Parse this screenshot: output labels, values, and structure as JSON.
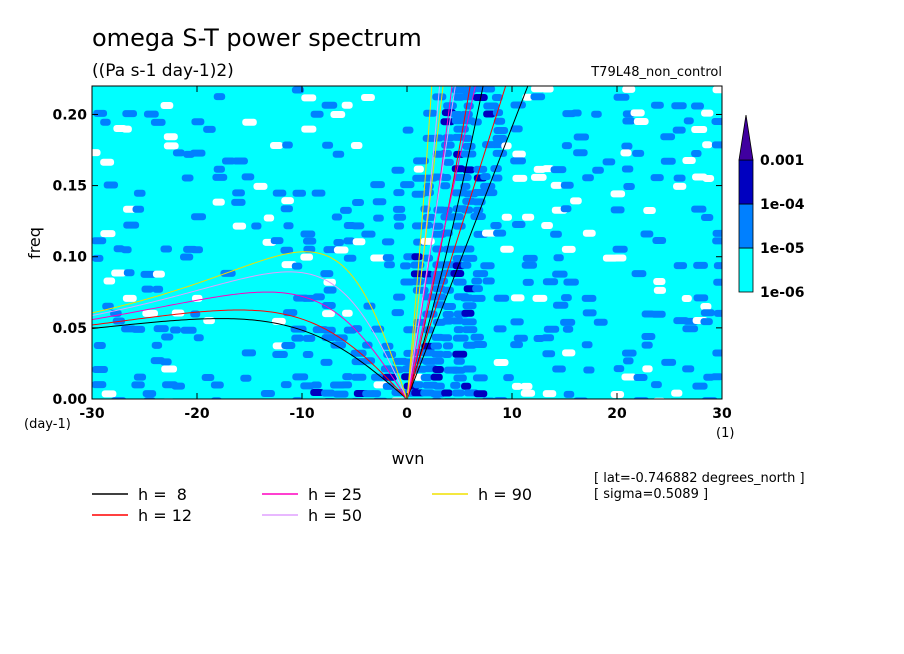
{
  "chart_data": {
    "type": "heatmap",
    "title": "omega S-T power spectrum",
    "subtitle": "((Pa s-1 day-1)2)",
    "run_label": "T79L48_non_control",
    "xlabel": "wvn",
    "ylabel": "freq",
    "x_unit": "(1)",
    "y_unit": "(day-1)",
    "xlim": [
      -30,
      30
    ],
    "ylim": [
      0,
      0.22
    ],
    "x_ticks": [
      "-30",
      "-20",
      "-10",
      "0",
      "10",
      "20",
      "30"
    ],
    "y_ticks": [
      "0.00",
      "0.05",
      "0.10",
      "0.15",
      "0.20"
    ],
    "color_levels": [
      "1e-06",
      "1e-05",
      "1e-04",
      "0.001"
    ],
    "colors": {
      "below": "#ffffff",
      "level1": "#00ffff",
      "level2": "#0080ff",
      "level3": "#0000c0",
      "level4": "#4000a0"
    },
    "dispersion_curves": [
      {
        "name": "h =  8",
        "h": 8,
        "color": "#000000"
      },
      {
        "name": "h = 12",
        "h": 12,
        "color": "#ff0000"
      },
      {
        "name": "h = 25",
        "h": 25,
        "color": "#ff00c0"
      },
      {
        "name": "h = 50",
        "h": 50,
        "color": "#e0a0ff"
      },
      {
        "name": "h = 90",
        "h": 90,
        "color": "#f0e000"
      }
    ],
    "annotations": [
      "[ lat=-0.746882 degrees_north ]",
      "[ sigma=0.5089 ]"
    ]
  }
}
